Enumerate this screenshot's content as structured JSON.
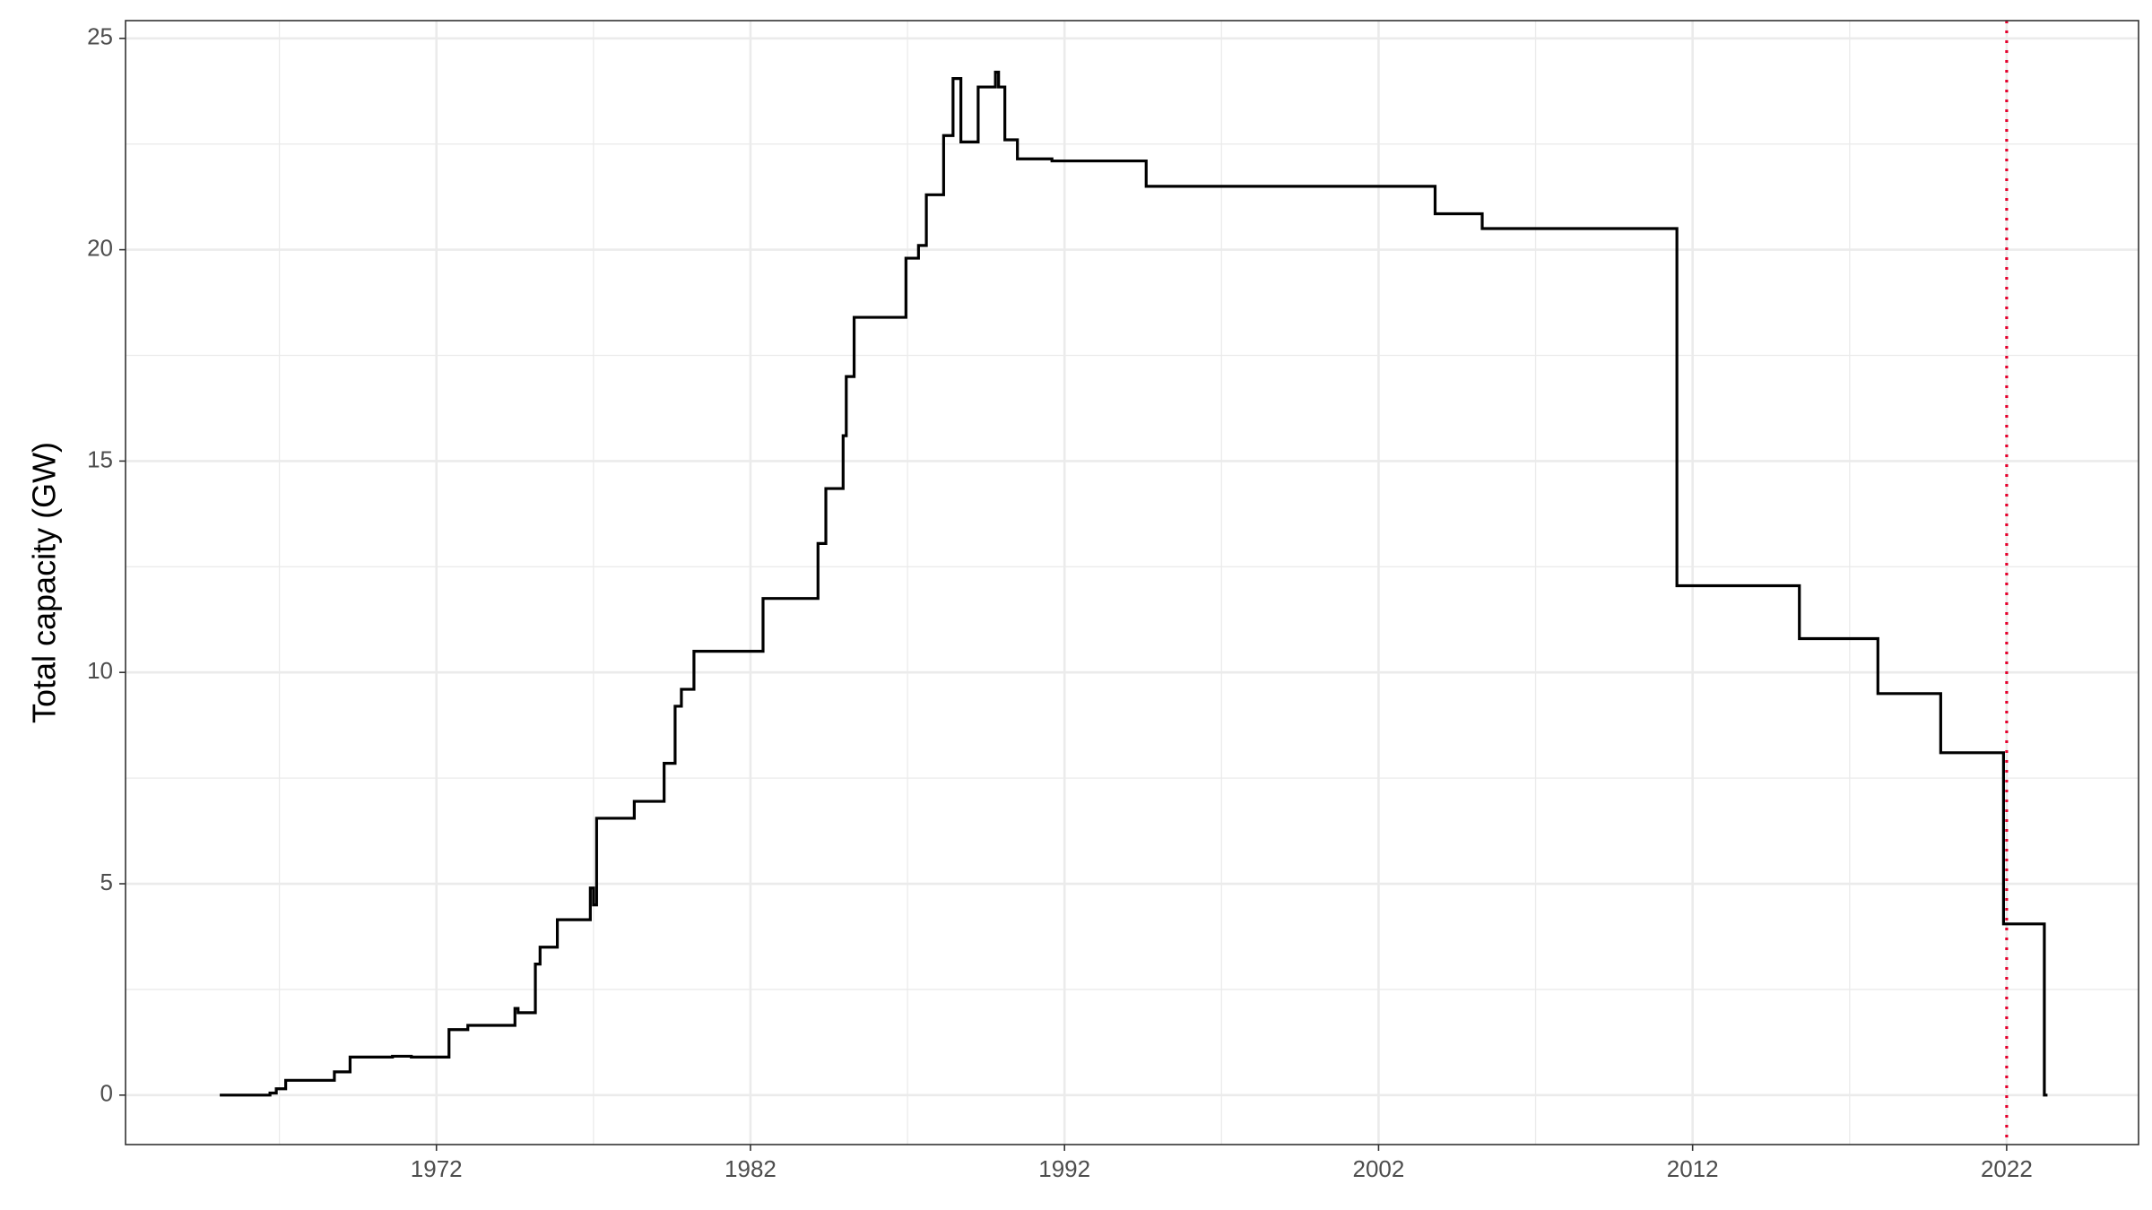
{
  "chart_data": {
    "type": "step",
    "y_label": "Total capacity (GW)",
    "x": [
      1965.1,
      1966.7,
      1966.9,
      1967.2,
      1968.75,
      1969.25,
      1970.6,
      1971.2,
      1972.4,
      1973.0,
      1974.5,
      1974.6,
      1975.15,
      1975.3,
      1975.85,
      1976.9,
      1977.0,
      1977.1,
      1978.3,
      1979.25,
      1979.6,
      1979.8,
      1980.2,
      1982.4,
      1984.15,
      1984.4,
      1984.95,
      1985.05,
      1985.3,
      1986.95,
      1987.35,
      1987.6,
      1988.15,
      1988.45,
      1988.7,
      1989.25,
      1989.8,
      1989.9,
      1990.1,
      1990.5,
      1991.6,
      1994.6,
      2003.8,
      2005.3,
      2011.5,
      2015.4,
      2017.9,
      2019.9,
      2021.9,
      2023.2,
      2023.3
    ],
    "values": [
      0,
      0.05,
      0.15,
      0.35,
      0.55,
      0.9,
      0.92,
      0.9,
      1.55,
      1.65,
      2.05,
      1.95,
      3.1,
      3.5,
      4.15,
      4.9,
      4.5,
      6.55,
      6.95,
      7.85,
      9.2,
      9.6,
      10.5,
      11.75,
      13.05,
      14.35,
      15.6,
      17.0,
      18.4,
      19.8,
      20.1,
      21.3,
      22.7,
      24.05,
      22.55,
      23.85,
      24.2,
      23.85,
      22.6,
      22.15,
      22.1,
      21.5,
      20.85,
      20.5,
      12.05,
      10.8,
      9.5,
      8.1,
      4.05,
      0,
      0
    ],
    "color": "#000000",
    "xlim": [
      1962.1,
      2026.2
    ],
    "ylim": [
      -1.17,
      25.42
    ],
    "xticks": [
      1972,
      1982,
      1992,
      2002,
      2012,
      2022
    ],
    "yticks": [
      0,
      5,
      10,
      15,
      20,
      25
    ],
    "x_minor_ticks": [
      1967,
      1977,
      1987,
      1997,
      2007,
      2017
    ],
    "y_minor_ticks": [
      2.5,
      7.5,
      12.5,
      17.5,
      22.5
    ],
    "grid": true,
    "vline": {
      "x": 2022,
      "color": "#e4002b"
    }
  }
}
